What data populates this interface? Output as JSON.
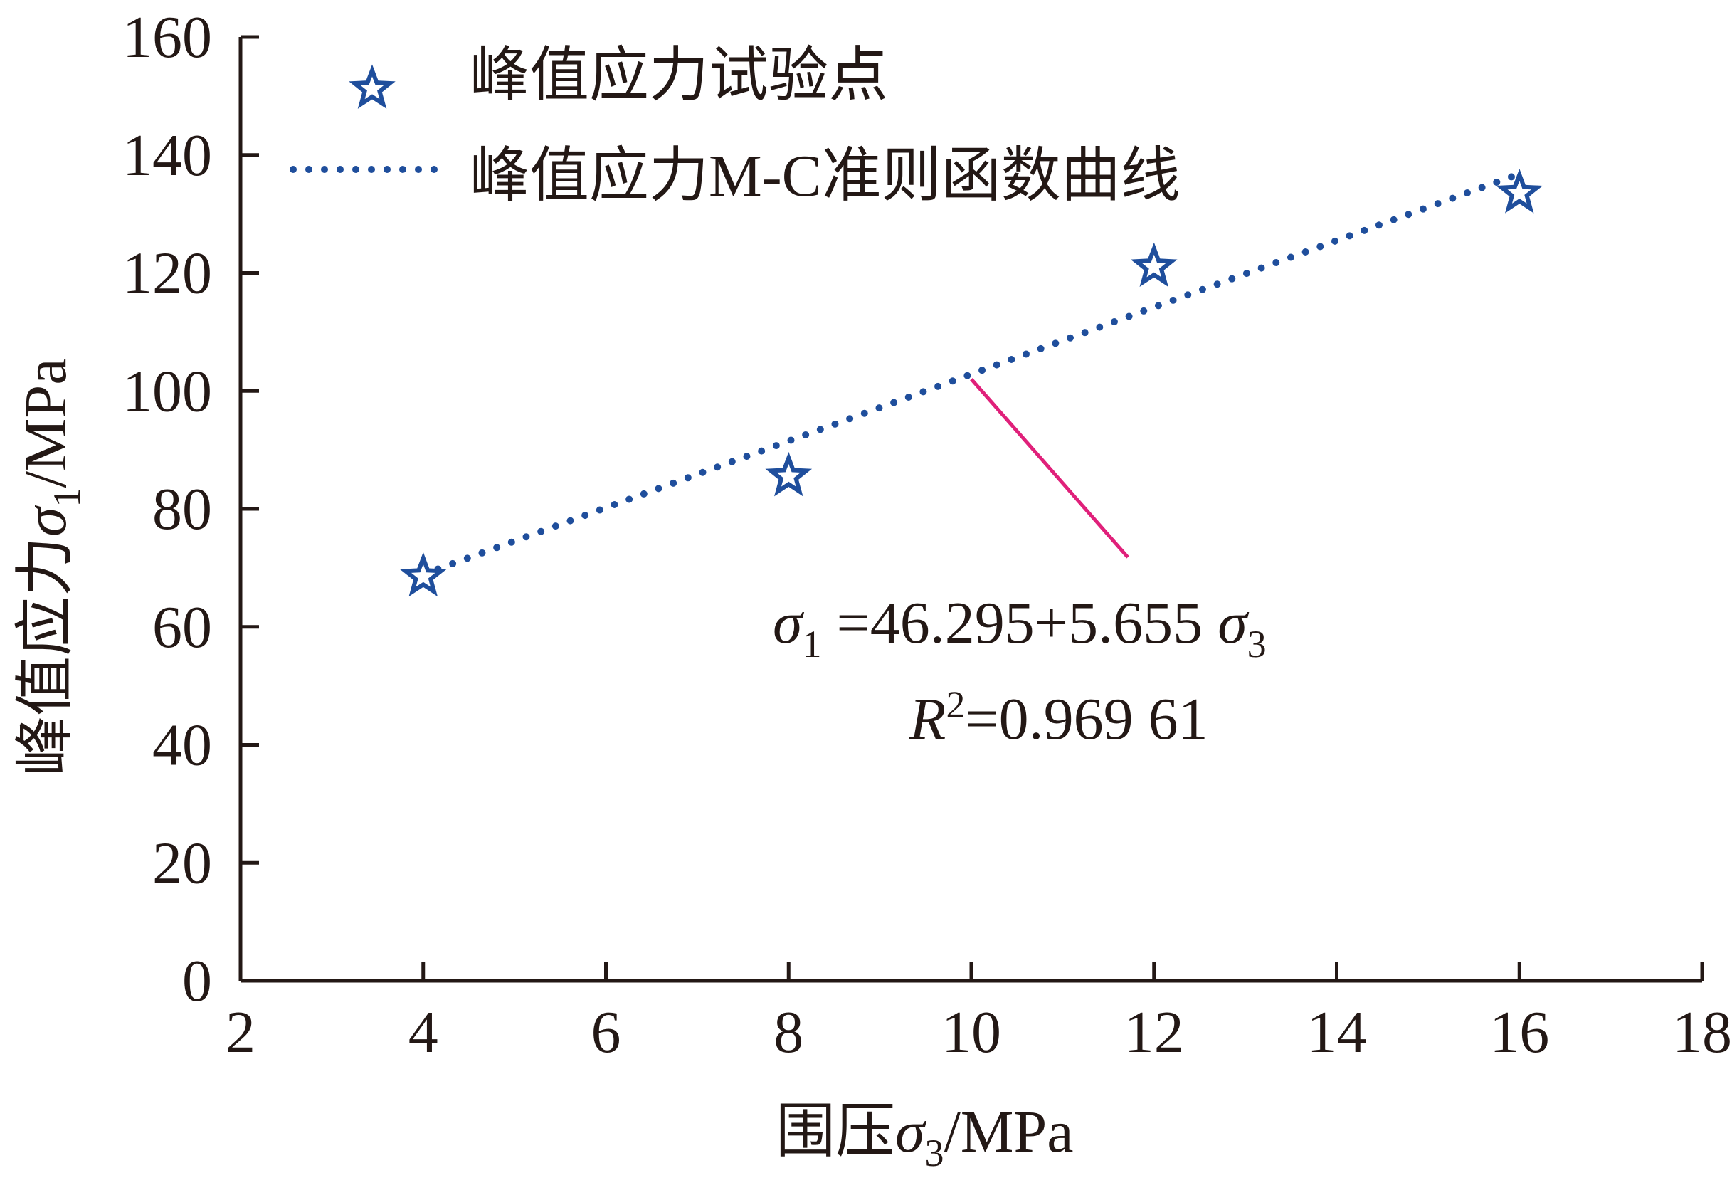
{
  "chart_data": {
    "type": "scatter",
    "xlim": [
      2,
      18
    ],
    "ylim": [
      0,
      160
    ],
    "x_ticks": [
      2,
      4,
      6,
      8,
      10,
      12,
      14,
      16,
      18
    ],
    "y_ticks": [
      0,
      20,
      40,
      60,
      80,
      100,
      120,
      140,
      160
    ],
    "xlabel_prefix": "围压",
    "xlabel_symbol": "σ",
    "xlabel_sub": "3",
    "xlabel_unit": "/MPa",
    "ylabel_prefix": "峰值应力",
    "ylabel_symbol": "σ",
    "ylabel_sub": "1",
    "ylabel_unit": "/MPa",
    "legend_position": "top-left",
    "grid": false,
    "series": [
      {
        "name": "峰值应力试验点",
        "kind": "points",
        "marker": "star",
        "color": "#1f4e9c",
        "x": [
          4,
          8,
          12,
          16
        ],
        "y": [
          68.5,
          85.5,
          121,
          133.5
        ]
      },
      {
        "name": "峰值应力M-C准则函数曲线",
        "kind": "line",
        "style": "dotted",
        "color": "#1f4e9c",
        "x": [
          4,
          8,
          12,
          16
        ],
        "y": [
          68.9,
          91.5,
          114.2,
          136.8
        ]
      }
    ],
    "annotation": {
      "equation_sigma": "σ",
      "equation_sub1": "1",
      "equation_body": " =46.295+5.655 ",
      "equation_sub3": "3",
      "r2_label": "R",
      "r2_sup": "2",
      "r2_value": "=0.969 61",
      "leader_color": "#e0207a",
      "leader_from_data": [
        10,
        102
      ]
    }
  }
}
